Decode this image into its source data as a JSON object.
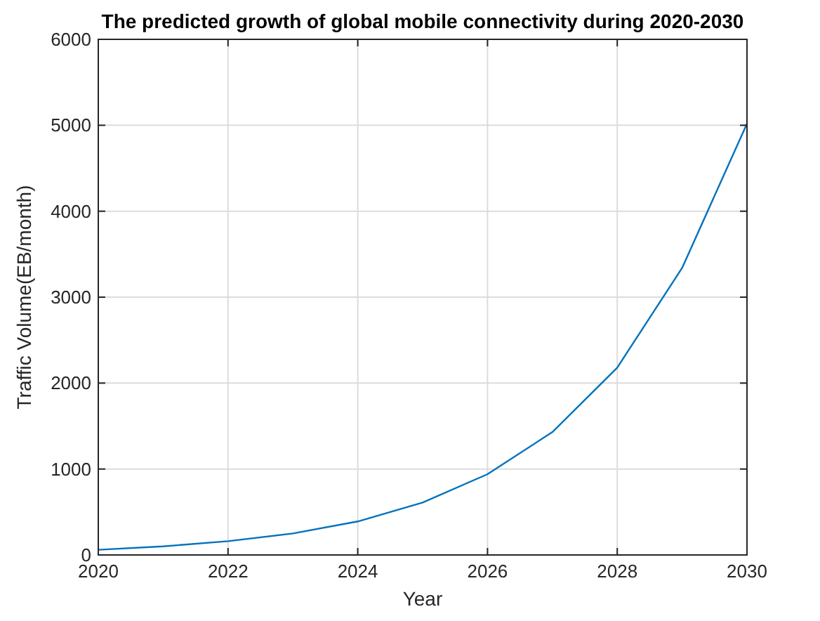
{
  "chart_data": {
    "type": "line",
    "title": "The predicted growth of global mobile connectivity during 2020-2030",
    "xlabel": "Year",
    "ylabel": "Traffic Volume(EB/month)",
    "x": [
      2020,
      2021,
      2022,
      2023,
      2024,
      2025,
      2026,
      2027,
      2028,
      2029,
      2030
    ],
    "series": [
      {
        "color": "#0072bd",
        "values": [
          60,
          100,
          160,
          250,
          390,
          610,
          940,
          1430,
          2180,
          3340,
          5020
        ]
      }
    ],
    "xlim": [
      2020,
      2030
    ],
    "xticks": [
      2020,
      2022,
      2024,
      2026,
      2028,
      2030
    ],
    "ylim": [
      0,
      6000
    ],
    "yticks": [
      0,
      1000,
      2000,
      3000,
      4000,
      5000,
      6000
    ],
    "grid": true,
    "line_style": "solid",
    "marker": "none"
  }
}
